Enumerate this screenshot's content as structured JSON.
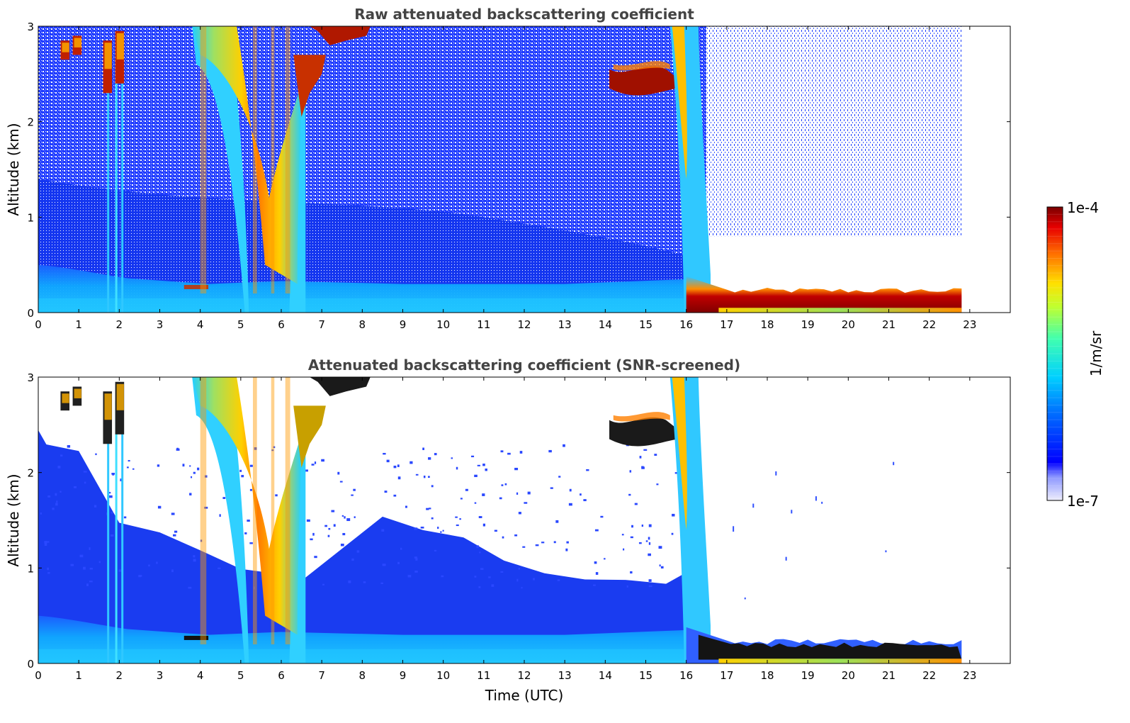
{
  "colorbar": {
    "label": "1/m/sr",
    "min_label": "1e-7",
    "max_label": "1e-4",
    "min_value": 1e-07,
    "max_value": 0.0001,
    "scale": "log",
    "colormap": "jet (white → light blue/blue → cyan → green → yellow → orange → red → dark red)"
  },
  "chart_data": [
    {
      "type": "heatmap",
      "title": "Raw attenuated backscattering coefficient",
      "xlabel": "",
      "ylabel": "Altitude (km)",
      "xlim": [
        0,
        24
      ],
      "ylim": [
        0,
        3
      ],
      "xticks": [
        "0",
        "1",
        "2",
        "3",
        "4",
        "5",
        "6",
        "7",
        "8",
        "9",
        "10",
        "11",
        "12",
        "13",
        "14",
        "15",
        "16",
        "17",
        "18",
        "19",
        "20",
        "21",
        "22",
        "23"
      ],
      "yticks": [
        "0",
        "1",
        "2",
        "3"
      ],
      "data_end_hour": 22.8,
      "features": [
        {
          "feature": "aerosol boundary layer",
          "time": [
            0,
            16
          ],
          "top_km": 0.45,
          "level": "cyan"
        },
        {
          "feature": "noisy background",
          "time": [
            0,
            16.5
          ],
          "level": "blue/white speckle"
        },
        {
          "feature": "fog/low cloud layer",
          "time": [
            16,
            22.8
          ],
          "base_km": 0.05,
          "top_km": 0.3,
          "level": "dark red"
        },
        {
          "feature": "precipitation streaks",
          "time": [
            1.7,
            2.1
          ],
          "altitude_km": [
            0,
            2.8
          ]
        },
        {
          "feature": "precipitation/virga",
          "time": [
            3.8,
            6.6
          ],
          "altitude_km": [
            0,
            3
          ]
        },
        {
          "feature": "cloud",
          "time": [
            6.6,
            8.2
          ],
          "altitude_km": [
            2.8,
            3.0
          ],
          "level": "dark red"
        },
        {
          "feature": "cloud",
          "time": [
            14.1,
            15.8
          ],
          "altitude_km": [
            2.3,
            2.6
          ],
          "level": "dark red"
        },
        {
          "feature": "precipitation",
          "time": [
            15.6,
            16.6
          ],
          "altitude_km": [
            0,
            3
          ]
        },
        {
          "feature": "small clouds",
          "time": [
            0.5,
            1.0
          ],
          "altitude_km": [
            2.6,
            2.9
          ],
          "level": "dark red"
        }
      ]
    },
    {
      "type": "heatmap",
      "title": "Attenuated backscattering coefficient (SNR-screened)",
      "xlabel": "Time (UTC)",
      "ylabel": "Altitude (km)",
      "xlim": [
        0,
        24
      ],
      "ylim": [
        0,
        3
      ],
      "xticks": [
        "0",
        "1",
        "2",
        "3",
        "4",
        "5",
        "6",
        "7",
        "8",
        "9",
        "10",
        "11",
        "12",
        "13",
        "14",
        "15",
        "16",
        "17",
        "18",
        "19",
        "20",
        "21",
        "22",
        "23"
      ],
      "yticks": [
        "0",
        "1",
        "2",
        "3"
      ],
      "data_end_hour": 22.8,
      "features": [
        {
          "feature": "screened aerosol layer",
          "time": [
            0,
            16
          ],
          "top_km": [
            2.4,
            1.5,
            1.0,
            0.8
          ],
          "level": "blue"
        },
        {
          "feature": "aerosol boundary layer",
          "time": [
            0,
            16
          ],
          "top_km": 0.45,
          "level": "cyan"
        },
        {
          "feature": "fog/low cloud layer",
          "time": [
            16.5,
            22.8
          ],
          "base_km": 0.05,
          "top_km": 0.3,
          "level": "black/dark red"
        },
        {
          "feature": "precipitation/virga",
          "time": [
            3.8,
            6.6
          ],
          "altitude_km": [
            0,
            3
          ]
        },
        {
          "feature": "cloud",
          "time": [
            14.1,
            15.8
          ],
          "altitude_km": [
            2.2,
            2.6
          ]
        },
        {
          "feature": "precipitation",
          "time": [
            15.6,
            16.6
          ],
          "altitude_km": [
            0,
            3
          ]
        }
      ]
    }
  ]
}
